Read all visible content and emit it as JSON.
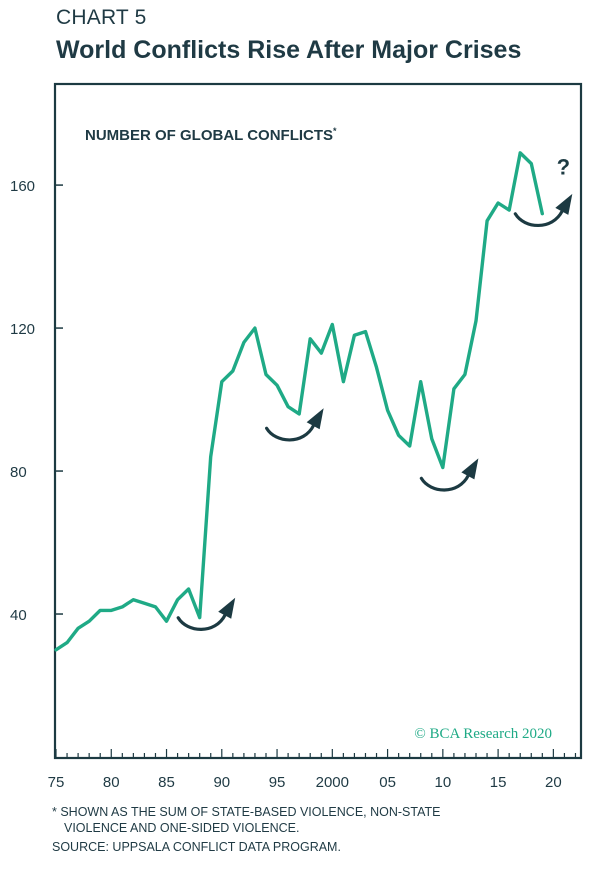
{
  "header": {
    "chart_label": "CHART 5",
    "title": "World Conflicts Rise After Major Crises"
  },
  "colors": {
    "line": "#1faa86",
    "arrow": "#1c3a42",
    "frame": "#1c3a42",
    "text": "#1f3a44"
  },
  "icons": [
    "curved-up-arrow-icon"
  ],
  "chart_data": {
    "type": "line",
    "title": "NUMBER OF GLOBAL CONFLICTS",
    "title_marker": "*",
    "xlabel": "",
    "ylabel": "",
    "xlim": [
      1975,
      2022.5
    ],
    "ylim": [
      0,
      188
    ],
    "y_ticks": [
      40,
      80,
      120,
      160
    ],
    "y_tick_labels": [
      "40",
      "80",
      "120",
      "160"
    ],
    "x_ticks": [
      1975,
      1980,
      1985,
      1990,
      1995,
      2000,
      2005,
      2010,
      2015,
      2020
    ],
    "x_tick_labels": [
      "75",
      "80",
      "85",
      "90",
      "95",
      "2000",
      "05",
      "10",
      "15",
      "20"
    ],
    "grid": false,
    "series": [
      {
        "x": [
          1975,
          1976,
          1977,
          1978,
          1979,
          1980,
          1981,
          1982,
          1983,
          1984,
          1985,
          1986,
          1987,
          1988,
          1989,
          1990,
          1991,
          1992,
          1993,
          1994,
          1995,
          1996,
          1997,
          1998,
          1999,
          2000,
          2001,
          2002,
          2003,
          2004,
          2005,
          2006,
          2007,
          2008,
          2009,
          2010,
          2011,
          2012,
          2013,
          2014,
          2015,
          2016,
          2017,
          2018,
          2019
        ],
        "values": [
          30,
          32,
          36,
          38,
          41,
          41,
          42,
          44,
          43,
          42,
          38,
          44,
          47,
          39,
          84,
          105,
          108,
          116,
          120,
          107,
          104,
          98,
          96,
          117,
          113,
          121,
          105,
          118,
          119,
          109,
          97,
          90,
          87,
          105,
          89,
          81,
          103,
          107,
          122,
          150,
          155,
          153,
          169,
          166,
          152
        ]
      }
    ],
    "annotations": [
      {
        "type": "arrow",
        "x": 1988.5,
        "y": 37
      },
      {
        "type": "arrow",
        "x": 1996.5,
        "y": 90
      },
      {
        "type": "arrow",
        "x": 2010.5,
        "y": 76
      },
      {
        "type": "arrow",
        "x": 2019,
        "y": 150
      },
      {
        "type": "text",
        "text": "?",
        "x": 2020.3,
        "y": 163
      }
    ],
    "watermark": "© BCA Research 2020"
  },
  "footer": {
    "note_line1": "* SHOWN AS THE SUM OF STATE-BASED VIOLENCE, NON-STATE",
    "note_line2": "VIOLENCE AND ONE-SIDED VIOLENCE.",
    "source": "SOURCE: UPPSALA CONFLICT DATA PROGRAM."
  }
}
